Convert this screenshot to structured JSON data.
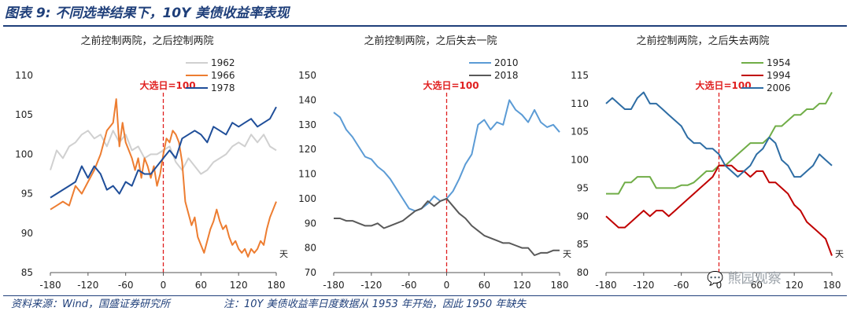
{
  "figure": {
    "title": "图表 9:  不同选举结果下，10Y 美债收益率表现"
  },
  "footer": {
    "source": "资料来源：Wind，国盛证券研究所",
    "note": "注：10Y 美债收益率日度数据从 1953 年开始，因此 1950 年缺失"
  },
  "watermark": {
    "text": "熊园观察"
  },
  "colors": {
    "brand": "#1f3f7a",
    "annotation": "#e02020"
  },
  "chart_data": [
    {
      "type": "line",
      "title": "之前控制两院，之后控制两院",
      "annotation": "大选日=100",
      "x_unit_label": "天",
      "xlim": [
        -180,
        180
      ],
      "ylim": [
        85,
        110
      ],
      "xticks": [
        -180,
        -120,
        -60,
        0,
        60,
        120,
        180
      ],
      "yticks": [
        85,
        90,
        95,
        100,
        105,
        110
      ],
      "legend": "top",
      "series": [
        {
          "name": "1962",
          "color": "#d0d0d0",
          "x": [
            -180,
            -170,
            -160,
            -150,
            -140,
            -130,
            -120,
            -110,
            -100,
            -90,
            -80,
            -70,
            -60,
            -50,
            -40,
            -30,
            -20,
            -10,
            0,
            10,
            20,
            30,
            40,
            50,
            60,
            70,
            80,
            90,
            100,
            110,
            120,
            130,
            140,
            150,
            160,
            170,
            180
          ],
          "y": [
            98,
            100.5,
            99.5,
            101,
            101.5,
            102.5,
            103,
            102,
            102.5,
            101,
            103,
            101.5,
            102.5,
            100.5,
            101,
            99.5,
            100,
            100,
            100.5,
            101,
            99,
            98,
            99.5,
            98.5,
            97.5,
            98,
            99,
            99.5,
            100,
            101,
            101.5,
            101,
            102.5,
            101.5,
            102.5,
            101,
            100.5
          ]
        },
        {
          "name": "1966",
          "color": "#ed7d31",
          "x": [
            -180,
            -170,
            -160,
            -150,
            -140,
            -130,
            -120,
            -110,
            -100,
            -90,
            -80,
            -75,
            -70,
            -65,
            -60,
            -55,
            -50,
            -45,
            -40,
            -35,
            -30,
            -25,
            -20,
            -15,
            -10,
            -5,
            0,
            5,
            10,
            15,
            20,
            25,
            30,
            35,
            40,
            45,
            50,
            55,
            60,
            65,
            70,
            75,
            80,
            85,
            90,
            95,
            100,
            105,
            110,
            115,
            120,
            125,
            130,
            135,
            140,
            145,
            150,
            155,
            160,
            165,
            170,
            175,
            180
          ],
          "y": [
            93,
            93.5,
            94,
            93.5,
            96,
            95,
            96.5,
            98,
            100,
            103,
            104,
            107,
            101,
            104,
            101.5,
            100.5,
            99.5,
            98,
            99.5,
            97,
            99.5,
            98.5,
            97,
            98.5,
            96,
            97.5,
            100,
            102,
            101.5,
            103,
            102.5,
            101.5,
            99,
            94,
            92.5,
            91,
            92,
            89.5,
            88.5,
            87.5,
            89,
            90.5,
            91.5,
            93,
            91.5,
            90.5,
            91,
            89.5,
            88.5,
            89,
            88,
            87.5,
            88,
            87,
            88,
            87.5,
            88,
            89,
            88.5,
            90.5,
            92,
            93,
            94
          ]
        },
        {
          "name": "1978",
          "color": "#1f4e99",
          "x": [
            -180,
            -170,
            -160,
            -150,
            -140,
            -130,
            -120,
            -110,
            -100,
            -90,
            -80,
            -70,
            -60,
            -50,
            -40,
            -30,
            -20,
            -10,
            0,
            10,
            20,
            30,
            40,
            50,
            60,
            70,
            80,
            90,
            100,
            110,
            120,
            130,
            140,
            150,
            160,
            170,
            180
          ],
          "y": [
            94.5,
            95,
            95.5,
            96,
            96.5,
            98.5,
            97,
            98.5,
            97.5,
            95.5,
            96,
            95,
            96.5,
            96,
            98,
            97.5,
            97.5,
            98.5,
            99.5,
            100.5,
            99.5,
            102,
            102.5,
            103,
            102.5,
            101.5,
            103.5,
            103,
            102.5,
            104,
            103.5,
            104,
            104.5,
            103.5,
            104,
            104.5,
            106
          ]
        }
      ]
    },
    {
      "type": "line",
      "title": "之前控制两院，之后失去一院",
      "annotation": "大选日=100",
      "x_unit_label": "天",
      "xlim": [
        -180,
        180
      ],
      "ylim": [
        70,
        150
      ],
      "xticks": [
        -180,
        -120,
        -60,
        0,
        60,
        120,
        180
      ],
      "yticks": [
        70,
        80,
        90,
        100,
        110,
        120,
        130,
        140,
        150
      ],
      "legend": "top",
      "series": [
        {
          "name": "2010",
          "color": "#5b9bd5",
          "x": [
            -180,
            -170,
            -160,
            -150,
            -140,
            -130,
            -120,
            -110,
            -100,
            -90,
            -80,
            -70,
            -60,
            -50,
            -40,
            -30,
            -20,
            -10,
            0,
            10,
            20,
            30,
            40,
            50,
            60,
            70,
            80,
            90,
            100,
            110,
            120,
            130,
            140,
            150,
            160,
            170,
            180
          ],
          "y": [
            135,
            133,
            128,
            125,
            121,
            117,
            116,
            113,
            111,
            108,
            104,
            100,
            96,
            95,
            96,
            98,
            101,
            99,
            100,
            103,
            108,
            114,
            118,
            130,
            132,
            128,
            131,
            130,
            140,
            136,
            134,
            131,
            136,
            131,
            129,
            130,
            127
          ]
        },
        {
          "name": "2018",
          "color": "#595959",
          "x": [
            -180,
            -170,
            -160,
            -150,
            -140,
            -130,
            -120,
            -110,
            -100,
            -90,
            -80,
            -70,
            -60,
            -50,
            -40,
            -30,
            -20,
            -10,
            0,
            10,
            20,
            30,
            40,
            50,
            60,
            70,
            80,
            90,
            100,
            110,
            120,
            130,
            140,
            150,
            160,
            170,
            180
          ],
          "y": [
            92,
            92,
            91,
            91,
            90,
            89,
            89,
            90,
            88,
            89,
            90,
            91,
            93,
            95,
            96,
            99,
            97,
            99,
            100,
            97,
            94,
            92,
            89,
            87,
            85,
            84,
            83,
            82,
            82,
            81,
            80,
            80,
            77,
            78,
            78,
            79,
            79
          ]
        }
      ]
    },
    {
      "type": "line",
      "title": "之前控制两院，之后失去两院",
      "annotation": "大选日=100",
      "x_unit_label": "天",
      "xlim": [
        -180,
        180
      ],
      "ylim": [
        80,
        115
      ],
      "xticks": [
        -180,
        -120,
        -60,
        0,
        60,
        120,
        180
      ],
      "yticks": [
        80,
        85,
        90,
        95,
        100,
        105,
        110,
        115
      ],
      "legend": "top",
      "series": [
        {
          "name": "1954",
          "color": "#70ad47",
          "x": [
            -180,
            -170,
            -160,
            -150,
            -140,
            -130,
            -120,
            -110,
            -100,
            -90,
            -80,
            -70,
            -60,
            -50,
            -40,
            -30,
            -20,
            -10,
            0,
            10,
            20,
            30,
            40,
            50,
            60,
            70,
            80,
            90,
            100,
            110,
            120,
            130,
            140,
            150,
            160,
            170,
            180
          ],
          "y": [
            94,
            94,
            94,
            96,
            96,
            97,
            97,
            97,
            95,
            95,
            95,
            95,
            95.5,
            95.5,
            96,
            97,
            98,
            98,
            99,
            99,
            100,
            101,
            102,
            103,
            103,
            103,
            104,
            106,
            106,
            107,
            108,
            108,
            109,
            109,
            110,
            110,
            112
          ]
        },
        {
          "name": "1994",
          "color": "#c00000",
          "x": [
            -180,
            -170,
            -160,
            -150,
            -140,
            -130,
            -120,
            -110,
            -100,
            -90,
            -80,
            -70,
            -60,
            -50,
            -40,
            -30,
            -20,
            -10,
            0,
            10,
            20,
            30,
            40,
            50,
            60,
            70,
            80,
            90,
            100,
            110,
            120,
            130,
            140,
            150,
            160,
            170,
            180
          ],
          "y": [
            90,
            89,
            88,
            88,
            89,
            90,
            91,
            90,
            91,
            91,
            90,
            91,
            92,
            93,
            94,
            95,
            96,
            97,
            99,
            99,
            99,
            98,
            98,
            97,
            98,
            98,
            96,
            96,
            95,
            94,
            92,
            91,
            89,
            88,
            87,
            86,
            83
          ]
        },
        {
          "name": "2006",
          "color": "#2e6da4",
          "x": [
            -180,
            -170,
            -160,
            -150,
            -140,
            -130,
            -120,
            -110,
            -100,
            -90,
            -80,
            -70,
            -60,
            -50,
            -40,
            -30,
            -20,
            -10,
            0,
            10,
            20,
            30,
            40,
            50,
            60,
            70,
            80,
            90,
            100,
            110,
            120,
            130,
            140,
            150,
            160,
            170,
            180
          ],
          "y": [
            110,
            111,
            110,
            109,
            109,
            111,
            112,
            110,
            110,
            109,
            108,
            107,
            106,
            104,
            103,
            103,
            102,
            102,
            101,
            99,
            98,
            97,
            98,
            99,
            101,
            102,
            104,
            103,
            100,
            99,
            97,
            97,
            98,
            99,
            101,
            100,
            99
          ]
        }
      ]
    }
  ]
}
